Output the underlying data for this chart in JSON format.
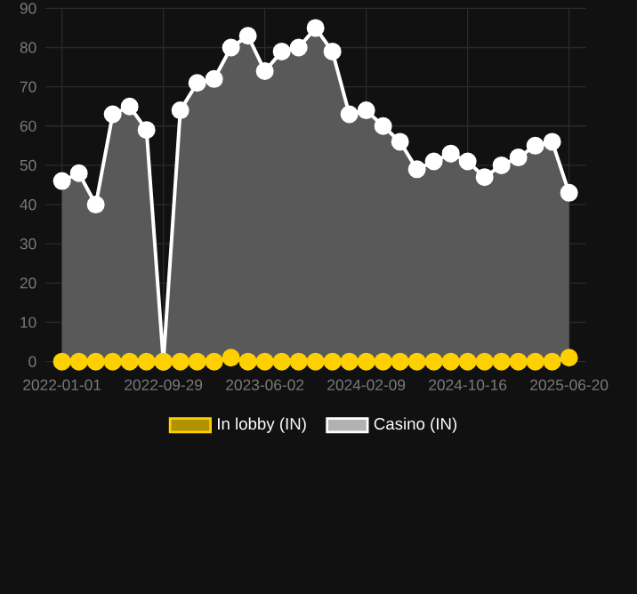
{
  "chart_data": {
    "type": "area",
    "categories": [
      "2022-01-01",
      null,
      null,
      null,
      null,
      null,
      "2022-09-29",
      null,
      null,
      null,
      null,
      null,
      "2023-06-02",
      null,
      null,
      null,
      null,
      null,
      "2024-02-09",
      null,
      null,
      null,
      null,
      null,
      "2024-10-16",
      null,
      null,
      null,
      null,
      null,
      "2025-06-20"
    ],
    "series": [
      {
        "name": "In lobby (IN)",
        "color": "#ffd000",
        "values": [
          0,
          0,
          0,
          0,
          0,
          0,
          0,
          0,
          0,
          0,
          1,
          0,
          0,
          0,
          0,
          0,
          0,
          0,
          0,
          0,
          0,
          0,
          0,
          0,
          0,
          0,
          0,
          0,
          0,
          0,
          1
        ]
      },
      {
        "name": "Casino (IN)",
        "color": "#ffffff",
        "values": [
          46,
          48,
          40,
          63,
          65,
          59,
          0,
          64,
          71,
          72,
          80,
          83,
          74,
          79,
          80,
          85,
          79,
          63,
          64,
          60,
          56,
          49,
          51,
          53,
          51,
          47,
          50,
          52,
          55,
          56,
          43
        ]
      }
    ],
    "ylim": [
      0,
      90
    ],
    "yticks": [
      0,
      10,
      20,
      30,
      40,
      50,
      60,
      70,
      80,
      90
    ],
    "grid": true,
    "legend": "bottom",
    "marker": "circle",
    "line_style": "solid"
  }
}
